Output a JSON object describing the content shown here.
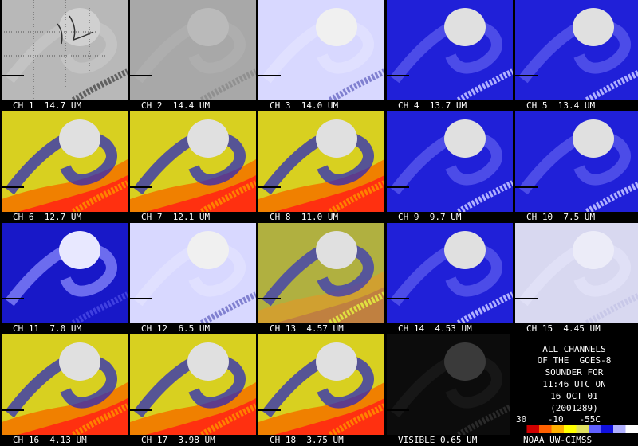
{
  "tiles": [
    {
      "label": "CH 1  14.7 UM",
      "style": "gray-map"
    },
    {
      "label": "CH 2  14.4 UM",
      "style": "gray"
    },
    {
      "label": "CH 3  14.0 UM",
      "style": "pale"
    },
    {
      "label": "CH 4  13.7 UM",
      "style": "blue"
    },
    {
      "label": "CH 5  13.4 UM",
      "style": "blue"
    },
    {
      "label": "CH 6  12.7 UM",
      "style": "yellow"
    },
    {
      "label": "CH 7  12.1 UM",
      "style": "yellow"
    },
    {
      "label": "CH 8  11.0 UM",
      "style": "yellow"
    },
    {
      "label": "CH 9  9.7 UM",
      "style": "blue"
    },
    {
      "label": "CH 10  7.5 UM",
      "style": "blue"
    },
    {
      "label": "CH 11  7.0 UM",
      "style": "bluedeep"
    },
    {
      "label": "CH 12  6.5 UM",
      "style": "pale"
    },
    {
      "label": "CH 13  4.57 UM",
      "style": "yellowblue"
    },
    {
      "label": "CH 14  4.53 UM",
      "style": "blue"
    },
    {
      "label": "CH 15  4.45 UM",
      "style": "noise"
    },
    {
      "label": "CH 16  4.13 UM",
      "style": "yellow"
    },
    {
      "label": "CH 17  3.98 UM",
      "style": "yellow"
    },
    {
      "label": "CH 18  3.75 UM",
      "style": "yellow"
    },
    {
      "label": "VISIBLE 0.65 UM",
      "style": "dark"
    }
  ],
  "info": {
    "lines": [
      "ALL CHANNELS",
      "OF THE  GOES-8",
      "SOUNDER FOR",
      "11:46 UTC ON",
      "16 OCT 01",
      "(2001289)"
    ],
    "scale": "30    -10   -55C",
    "credit": "NOAA UW-CIMSS",
    "colorbar": [
      "#000000",
      "#d00000",
      "#ff6000",
      "#ffb000",
      "#ffff00",
      "#e0e060",
      "#6060ff",
      "#1010e0",
      "#b0b0ff",
      "#ffffff"
    ]
  }
}
